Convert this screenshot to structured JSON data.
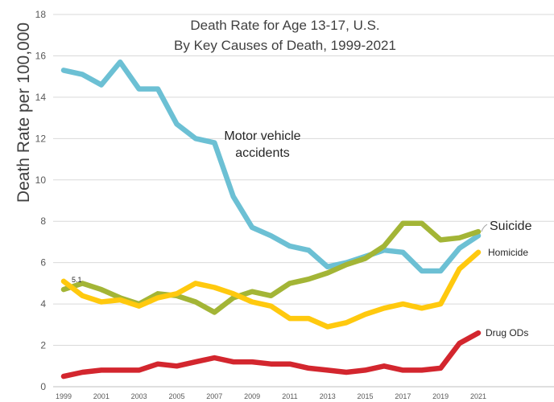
{
  "chart_data": {
    "type": "line",
    "title_lines": [
      "Death Rate for Age 13-17, U.S.",
      "By Key Causes of Death, 1999-2021"
    ],
    "xlabel": "",
    "ylabel": "Death Rate per 100,000",
    "ylim": [
      0,
      18
    ],
    "yticks": [
      0,
      2,
      4,
      6,
      8,
      10,
      12,
      14,
      16,
      18
    ],
    "x": [
      1999,
      2000,
      2001,
      2002,
      2003,
      2004,
      2005,
      2006,
      2007,
      2008,
      2009,
      2010,
      2011,
      2012,
      2013,
      2014,
      2015,
      2016,
      2017,
      2018,
      2019,
      2020,
      2021
    ],
    "xtick_labels": [
      "1999",
      "2001",
      "2003",
      "2005",
      "2007",
      "2009",
      "2011",
      "2013",
      "2015",
      "2017",
      "2019",
      "2021"
    ],
    "grid": true,
    "series": [
      {
        "name": "Motor vehicle accidents",
        "label_lines": [
          "Motor vehicle",
          "accidents"
        ],
        "color": "#6CC0D4",
        "values": [
          15.3,
          15.1,
          14.6,
          15.7,
          14.4,
          14.4,
          12.7,
          12.0,
          11.8,
          9.2,
          7.7,
          7.3,
          6.8,
          6.6,
          5.8,
          6.0,
          6.3,
          6.6,
          6.5,
          5.6,
          5.6,
          6.7,
          7.3
        ]
      },
      {
        "name": "Suicide",
        "label_lines": [
          "Suicide"
        ],
        "color": "#A3B536",
        "values": [
          4.7,
          5.0,
          4.7,
          4.3,
          4.0,
          4.5,
          4.4,
          4.1,
          3.6,
          4.3,
          4.6,
          4.4,
          5.0,
          5.2,
          5.5,
          5.9,
          6.2,
          6.8,
          7.9,
          7.9,
          7.1,
          7.2,
          7.5
        ]
      },
      {
        "name": "Homicide",
        "label_lines": [
          "Homicide"
        ],
        "color": "#FFC90E",
        "values": [
          5.1,
          4.4,
          4.1,
          4.2,
          3.9,
          4.3,
          4.5,
          5.0,
          4.8,
          4.5,
          4.1,
          3.9,
          3.3,
          3.3,
          2.9,
          3.1,
          3.5,
          3.8,
          4.0,
          3.8,
          4.0,
          5.7,
          6.5
        ]
      },
      {
        "name": "Drug ODs",
        "label_lines": [
          "Drug ODs"
        ],
        "color": "#D3262E",
        "values": [
          0.5,
          0.7,
          0.8,
          0.8,
          0.8,
          1.1,
          1.0,
          1.2,
          1.4,
          1.2,
          1.2,
          1.1,
          1.1,
          0.9,
          0.8,
          0.7,
          0.8,
          1.0,
          0.8,
          0.8,
          0.9,
          2.1,
          2.6
        ]
      }
    ],
    "annotations": [
      {
        "text": "5.1",
        "x": 1999,
        "y": 5.1
      }
    ]
  }
}
